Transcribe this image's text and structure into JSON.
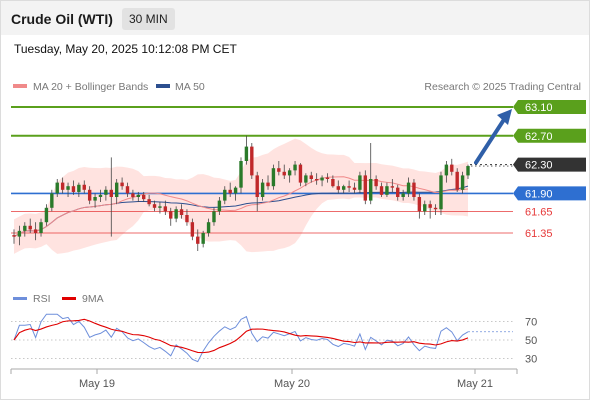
{
  "header": {
    "title": "Crude Oil (WTI)",
    "timeframe": "30 MIN"
  },
  "datetime": "Tuesday, May 20, 2025 10:12:08 PM CET",
  "source": "Research © 2025 Trading Central",
  "colors": {
    "support": "#2e6fd1",
    "resistance": "#5aa01c",
    "pivot_box": "#333333",
    "weak_level": "#e63a3a",
    "candle_up": "#2a7a2a",
    "candle_down": "#c0282a",
    "bollinger": "#ffd9d6",
    "ma20": "#f08a8a",
    "ma50": "#2c4f8f",
    "rsi": "#6e8fdb",
    "rsi_ma": "#e00000"
  },
  "chart_data": [
    {
      "type": "candlestick",
      "legend": [
        "MA 20 + Bollinger Bands",
        "MA 50"
      ],
      "x_ticks": [
        "May 19",
        "May 20",
        "May 21"
      ],
      "levels": [
        {
          "value": 63.1,
          "label": "63.10",
          "kind": "resistance"
        },
        {
          "value": 62.7,
          "label": "62.70",
          "kind": "resistance"
        },
        {
          "value": 62.3,
          "label": "62.30",
          "kind": "pivot"
        },
        {
          "value": 61.9,
          "label": "61.90",
          "kind": "support"
        },
        {
          "value": 61.65,
          "label": "61.65",
          "kind": "weak"
        },
        {
          "value": 61.35,
          "label": "61.35",
          "kind": "weak"
        }
      ],
      "candles": [
        [
          61.32,
          61.4,
          61.2,
          61.3
        ],
        [
          61.3,
          61.45,
          61.18,
          61.38
        ],
        [
          61.38,
          61.5,
          61.3,
          61.45
        ],
        [
          61.45,
          61.55,
          61.35,
          61.4
        ],
        [
          61.4,
          61.5,
          61.25,
          61.35
        ],
        [
          61.35,
          61.55,
          61.3,
          61.5
        ],
        [
          61.5,
          61.75,
          61.45,
          61.7
        ],
        [
          61.7,
          61.95,
          61.65,
          61.9
        ],
        [
          61.9,
          62.1,
          61.85,
          62.05
        ],
        [
          62.05,
          62.12,
          61.9,
          61.95
        ],
        [
          61.95,
          62.05,
          61.85,
          62.0
        ],
        [
          62.0,
          62.08,
          61.88,
          61.92
        ],
        [
          61.92,
          62.05,
          61.85,
          62.02
        ],
        [
          62.02,
          62.08,
          61.9,
          61.95
        ],
        [
          61.95,
          62.0,
          61.75,
          61.8
        ],
        [
          61.8,
          61.9,
          61.7,
          61.85
        ],
        [
          61.85,
          61.95,
          61.78,
          61.88
        ],
        [
          61.88,
          62.0,
          61.8,
          61.95
        ],
        [
          61.95,
          62.4,
          61.3,
          61.85
        ],
        [
          61.85,
          62.1,
          61.75,
          62.05
        ],
        [
          62.05,
          62.12,
          61.95,
          62.0
        ],
        [
          62.0,
          62.05,
          61.85,
          61.9
        ],
        [
          61.9,
          61.95,
          61.8,
          61.85
        ],
        [
          61.85,
          61.92,
          61.78,
          61.88
        ],
        [
          61.88,
          61.92,
          61.78,
          61.82
        ],
        [
          61.82,
          61.88,
          61.72,
          61.75
        ],
        [
          61.75,
          61.8,
          61.65,
          61.7
        ],
        [
          61.7,
          61.78,
          61.62,
          61.72
        ],
        [
          61.72,
          61.8,
          61.6,
          61.65
        ],
        [
          61.65,
          61.7,
          61.45,
          61.55
        ],
        [
          61.55,
          61.72,
          61.5,
          61.68
        ],
        [
          61.68,
          61.75,
          61.55,
          61.6
        ],
        [
          61.6,
          61.68,
          61.45,
          61.5
        ],
        [
          61.5,
          61.55,
          61.25,
          61.3
        ],
        [
          61.3,
          61.4,
          61.1,
          61.2
        ],
        [
          61.2,
          61.38,
          61.15,
          61.35
        ],
        [
          61.35,
          61.55,
          61.3,
          61.5
        ],
        [
          61.5,
          61.7,
          61.45,
          61.65
        ],
        [
          61.65,
          61.85,
          61.6,
          61.8
        ],
        [
          61.8,
          62.0,
          61.75,
          61.95
        ],
        [
          61.95,
          62.05,
          61.85,
          61.9
        ],
        [
          61.9,
          62.0,
          61.8,
          61.98
        ],
        [
          61.98,
          62.4,
          61.9,
          62.35
        ],
        [
          62.35,
          62.7,
          62.3,
          62.55
        ],
        [
          62.55,
          62.6,
          62.1,
          62.15
        ],
        [
          62.15,
          62.2,
          61.65,
          61.85
        ],
        [
          61.85,
          62.1,
          61.8,
          62.05
        ],
        [
          62.05,
          62.15,
          61.95,
          62.0
        ],
        [
          62.0,
          62.3,
          61.95,
          62.25
        ],
        [
          62.25,
          62.35,
          62.15,
          62.2
        ],
        [
          62.2,
          62.3,
          62.1,
          62.15
        ],
        [
          62.15,
          62.25,
          62.05,
          62.22
        ],
        [
          62.22,
          62.35,
          62.15,
          62.3
        ],
        [
          62.3,
          62.32,
          62.0,
          62.05
        ],
        [
          62.05,
          62.18,
          62.0,
          62.15
        ],
        [
          62.15,
          62.2,
          62.05,
          62.1
        ],
        [
          62.1,
          62.18,
          62.02,
          62.08
        ],
        [
          62.08,
          62.15,
          62.0,
          62.12
        ],
        [
          62.12,
          62.18,
          62.05,
          62.1
        ],
        [
          62.1,
          62.15,
          61.98,
          62.0
        ],
        [
          62.0,
          62.08,
          61.9,
          61.95
        ],
        [
          61.95,
          62.02,
          61.9,
          62.0
        ],
        [
          62.0,
          62.08,
          61.92,
          61.98
        ],
        [
          61.98,
          62.05,
          61.9,
          61.95
        ],
        [
          61.95,
          62.2,
          61.9,
          62.15
        ],
        [
          62.15,
          62.22,
          61.75,
          61.8
        ],
        [
          61.8,
          62.6,
          61.75,
          62.1
        ],
        [
          62.1,
          62.15,
          61.95,
          62.0
        ],
        [
          62.0,
          62.05,
          61.85,
          61.88
        ],
        [
          61.88,
          62.05,
          61.85,
          62.0
        ],
        [
          62.0,
          62.1,
          61.92,
          61.98
        ],
        [
          61.98,
          62.02,
          61.8,
          61.85
        ],
        [
          61.85,
          61.95,
          61.8,
          61.9
        ],
        [
          61.9,
          62.12,
          61.85,
          62.05
        ],
        [
          62.05,
          62.1,
          61.8,
          61.85
        ],
        [
          61.85,
          61.9,
          61.55,
          61.65
        ],
        [
          61.65,
          61.8,
          61.6,
          61.75
        ],
        [
          61.75,
          61.8,
          61.55,
          61.7
        ],
        [
          61.7,
          61.75,
          61.6,
          61.68
        ],
        [
          61.68,
          62.2,
          61.6,
          62.15
        ],
        [
          62.15,
          62.35,
          62.05,
          62.3
        ],
        [
          62.3,
          62.38,
          62.15,
          62.2
        ],
        [
          62.2,
          62.25,
          61.92,
          61.95
        ],
        [
          61.95,
          62.2,
          61.9,
          62.15
        ],
        [
          62.15,
          62.3,
          62.1,
          62.28
        ]
      ]
    },
    {
      "type": "line",
      "legend": [
        "RSI",
        "9MA"
      ],
      "y_ticks": [
        70,
        50,
        30
      ],
      "ylim": [
        20,
        80
      ]
    }
  ]
}
